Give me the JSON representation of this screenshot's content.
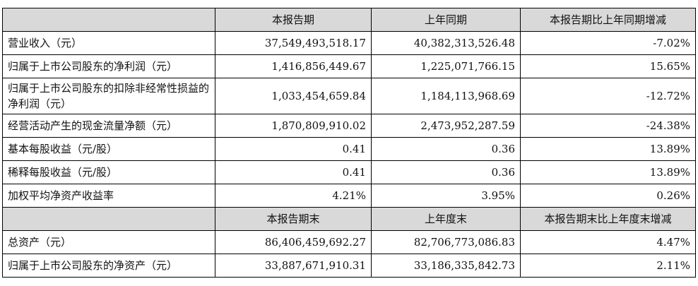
{
  "header1": {
    "col1": "本报告期",
    "col2": "上年同期",
    "col3": "本报告期比上年同期增减"
  },
  "rows1": [
    {
      "label": "营业收入（元）",
      "current": "37,549,493,518.17",
      "prior": "40,382,313,526.48",
      "change": "-7.02%"
    },
    {
      "label": "归属于上市公司股东的净利润（元）",
      "current": "1,416,856,449.67",
      "prior": "1,225,071,766.15",
      "change": "15.65%"
    },
    {
      "label": "归属于上市公司股东的扣除非经常性损益的净利润（元）",
      "current": "1,033,454,659.84",
      "prior": "1,184,113,968.69",
      "change": "-12.72%"
    },
    {
      "label": "经营活动产生的现金流量净额（元）",
      "current": "1,870,809,910.02",
      "prior": "2,473,952,287.59",
      "change": "-24.38%"
    },
    {
      "label": "基本每股收益（元/股）",
      "current": "0.41",
      "prior": "0.36",
      "change": "13.89%"
    },
    {
      "label": "稀释每股收益（元/股）",
      "current": "0.41",
      "prior": "0.36",
      "change": "13.89%"
    },
    {
      "label": "加权平均净资产收益率",
      "current": "4.21%",
      "prior": "3.95%",
      "change": "0.26%"
    }
  ],
  "header2": {
    "col1": "本报告期末",
    "col2": "上年度末",
    "col3": "本报告期末比上年度末增减"
  },
  "rows2": [
    {
      "label": "总资产（元）",
      "current": "86,406,459,692.27",
      "prior": "82,706,773,086.83",
      "change": "4.47%"
    },
    {
      "label": "归属于上市公司股东的净资产（元）",
      "current": "33,887,671,910.31",
      "prior": "33,186,335,842.73",
      "change": "2.11%"
    }
  ]
}
